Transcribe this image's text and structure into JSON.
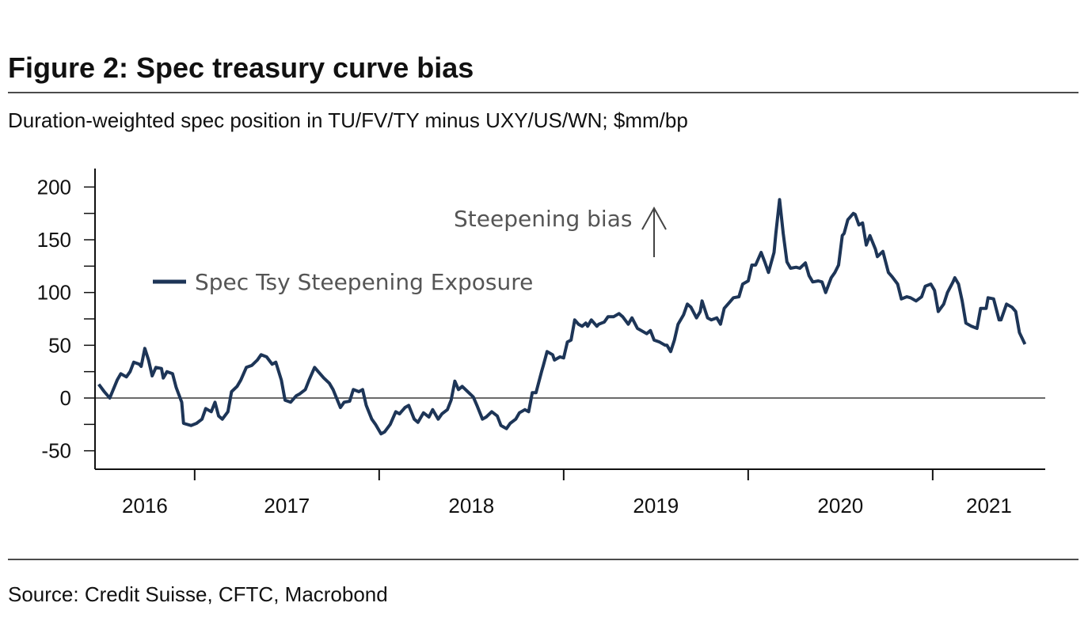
{
  "chart_data": {
    "type": "line",
    "title": "Figure 2: Spec treasury curve bias",
    "subtitle": "Duration-weighted spec position in TU/FV/TY minus UXY/US/WN; $mm/bp",
    "annotation": "Steepening bias",
    "source": "Source: Credit Suisse, CFTC, Macrobond",
    "legend": "upper left",
    "categories": [
      "2016",
      "2017",
      "2018",
      "2019",
      "2020",
      "2021"
    ],
    "xlim": [
      2016.46,
      2021.61
    ],
    "xticks": [
      2017,
      2018,
      2019,
      2020,
      2021
    ],
    "ylim": [
      -67.5,
      217.5
    ],
    "yticks": [
      -50,
      0,
      50,
      100,
      150,
      200
    ],
    "x": [
      2016.48,
      2016.51,
      2016.54,
      2016.58,
      2016.6,
      2016.63,
      2016.65,
      2016.67,
      2016.7,
      2016.71,
      2016.73,
      2016.75,
      2016.77,
      2016.79,
      2016.82,
      2016.83,
      2016.85,
      2016.88,
      2016.9,
      2016.93,
      2016.94,
      2016.98,
      2017.01,
      2017.04,
      2017.06,
      2017.09,
      2017.11,
      2017.13,
      2017.15,
      2017.18,
      2017.2,
      2017.23,
      2017.25,
      2017.28,
      2017.31,
      2017.34,
      2017.36,
      2017.39,
      2017.42,
      2017.44,
      2017.47,
      2017.49,
      2017.52,
      2017.55,
      2017.57,
      2017.6,
      2017.62,
      2017.65,
      2017.67,
      2017.7,
      2017.73,
      2017.75,
      2017.79,
      2017.81,
      2017.84,
      2017.86,
      2017.89,
      2017.91,
      2017.93,
      2017.96,
      2017.98,
      2018.01,
      2018.03,
      2018.06,
      2018.09,
      2018.11,
      2018.14,
      2018.16,
      2018.19,
      2018.21,
      2018.24,
      2018.27,
      2018.29,
      2018.32,
      2018.34,
      2018.37,
      2018.39,
      2018.41,
      2018.43,
      2018.45,
      2018.48,
      2018.51,
      2018.53,
      2018.56,
      2018.58,
      2018.61,
      2018.64,
      2018.66,
      2018.69,
      2018.71,
      2018.74,
      2018.76,
      2018.79,
      2018.81,
      2018.83,
      2018.85,
      2018.88,
      2018.89,
      2018.91,
      2018.94,
      2018.95,
      2018.98,
      2019.0,
      2019.02,
      2019.04,
      2019.06,
      2019.08,
      2019.1,
      2019.12,
      2019.13,
      2019.15,
      2019.18,
      2019.19,
      2019.22,
      2019.24,
      2019.27,
      2019.3,
      2019.32,
      2019.35,
      2019.37,
      2019.4,
      2019.42,
      2019.45,
      2019.47,
      2019.49,
      2019.52,
      2019.55,
      2019.56,
      2019.58,
      2019.6,
      2019.62,
      2019.65,
      2019.67,
      2019.69,
      2019.72,
      2019.74,
      2019.75,
      2019.78,
      2019.8,
      2019.83,
      2019.85,
      2019.87,
      2019.9,
      2019.92,
      2019.95,
      2019.97,
      2020.0,
      2020.02,
      2020.04,
      2020.07,
      2020.09,
      2020.11,
      2020.14,
      2020.15,
      2020.17,
      2020.19,
      2020.21,
      2020.23,
      2020.26,
      2020.28,
      2020.31,
      2020.33,
      2020.35,
      2020.38,
      2020.4,
      2020.42,
      2020.45,
      2020.47,
      2020.49,
      2020.51,
      2020.52,
      2020.54,
      2020.57,
      2020.58,
      2020.6,
      2020.62,
      2020.64,
      2020.66,
      2020.69,
      2020.7,
      2020.73,
      2020.76,
      2020.78,
      2020.81,
      2020.83,
      2020.86,
      2020.88,
      2020.91,
      2020.94,
      2020.96,
      2020.99,
      2021.01,
      2021.03,
      2021.06,
      2021.08,
      2021.11,
      2021.12,
      2021.14,
      2021.16,
      2021.18,
      2021.21,
      2021.24,
      2021.26,
      2021.29,
      2021.3,
      2021.33,
      2021.36,
      2021.37,
      2021.4,
      2021.43,
      2021.45,
      2021.47,
      2021.5
    ],
    "series": [
      {
        "name": "Spec Tsy Steepening Exposure",
        "color": "#1d3557",
        "values": [
          13,
          6,
          0,
          17,
          23,
          20,
          25,
          34,
          32,
          30,
          47,
          36,
          21,
          29,
          28,
          19,
          25,
          23,
          10,
          -4,
          -24,
          -26,
          -24,
          -20,
          -10,
          -13,
          -4,
          -17,
          -20,
          -13,
          6,
          11,
          17,
          29,
          31,
          36,
          41,
          39,
          32,
          34,
          17,
          -2,
          -4,
          2,
          4,
          8,
          17,
          29,
          25,
          19,
          14,
          8,
          -9,
          -4,
          -3,
          8,
          6,
          8,
          -7,
          -20,
          -25,
          -34,
          -32,
          -25,
          -13,
          -15,
          -9,
          -7,
          -20,
          -23,
          -14,
          -18,
          -11,
          -20,
          -15,
          -11,
          -2,
          16,
          8,
          11,
          6,
          1,
          -7,
          -20,
          -18,
          -13,
          -17,
          -26,
          -29,
          -24,
          -20,
          -14,
          -11,
          -13,
          5,
          5,
          25,
          31,
          44,
          41,
          36,
          39,
          38,
          53,
          55,
          74,
          70,
          68,
          71,
          68,
          74,
          68,
          70,
          72,
          77,
          77,
          80,
          77,
          70,
          76,
          66,
          64,
          61,
          64,
          55,
          53,
          50,
          50,
          44,
          55,
          70,
          79,
          89,
          86,
          76,
          82,
          92,
          76,
          74,
          76,
          70,
          85,
          91,
          95,
          96,
          108,
          111,
          126,
          126,
          138,
          129,
          119,
          138,
          156,
          188,
          156,
          129,
          123,
          124,
          123,
          128,
          116,
          110,
          111,
          110,
          100,
          114,
          119,
          126,
          154,
          156,
          169,
          175,
          174,
          164,
          166,
          145,
          154,
          141,
          134,
          139,
          119,
          115,
          108,
          94,
          96,
          95,
          92,
          96,
          106,
          108,
          102,
          82,
          89,
          100,
          110,
          114,
          108,
          92,
          71,
          68,
          66,
          85,
          85,
          95,
          94,
          74,
          74,
          89,
          86,
          82,
          62,
          51
        ]
      }
    ]
  }
}
